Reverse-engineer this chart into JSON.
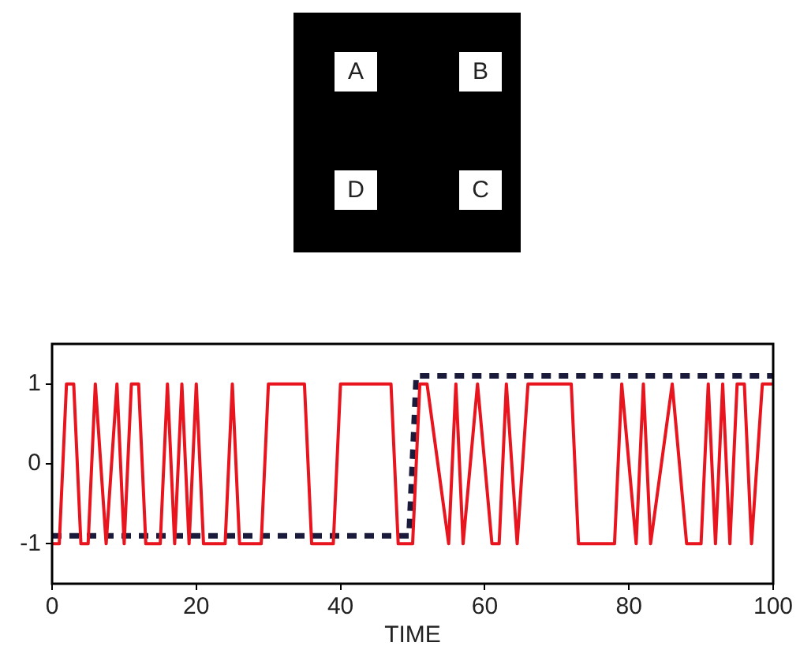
{
  "chart_data": {
    "type": "line",
    "xlabel": "TIME",
    "xlim": [
      0,
      100
    ],
    "xticks": [
      0,
      20,
      40,
      60,
      80,
      100
    ],
    "ylim": [
      -1.5,
      1.5
    ],
    "yticks": [
      -1,
      0,
      1
    ],
    "grid": false,
    "legend": false,
    "marker": "none",
    "annotations": [
      "A",
      "B",
      "D",
      "C"
    ],
    "series": [
      {
        "color": "#e8141e",
        "line_style": "solid",
        "x": [
          0,
          1,
          2,
          3,
          4,
          5,
          6,
          7.5,
          9,
          10,
          11,
          12,
          13,
          15,
          16,
          17,
          18,
          19,
          20,
          21,
          24,
          25,
          26,
          29,
          30,
          35,
          36,
          39,
          40,
          47,
          48,
          50,
          51,
          52,
          55,
          56,
          57,
          59,
          61,
          62,
          63,
          64.5,
          66,
          72,
          73,
          78,
          79,
          81,
          82,
          83,
          86,
          88,
          90,
          91,
          92,
          93,
          94,
          95,
          96,
          97,
          98.5,
          100
        ],
        "values": [
          -1,
          -1,
          1,
          1,
          -1,
          -1,
          1,
          -1,
          1,
          -1,
          1,
          1,
          -1,
          -1,
          1,
          -1,
          1,
          -1,
          1,
          -1,
          -1,
          1,
          -1,
          -1,
          1,
          1,
          -1,
          -1,
          1,
          1,
          -1,
          -1,
          1,
          1,
          -1,
          1,
          -1,
          1,
          -1,
          -1,
          1,
          -1,
          1,
          1,
          -1,
          -1,
          1,
          -1,
          1,
          -1,
          1,
          -1,
          -1,
          1,
          -1,
          1,
          -1,
          1,
          1,
          -1,
          1,
          1
        ]
      },
      {
        "color": "#1a1a3a",
        "line_style": "dashed",
        "x": [
          0,
          49.5,
          50.5,
          100
        ],
        "values": [
          -0.9,
          -0.9,
          1.1,
          1.1
        ]
      }
    ]
  }
}
